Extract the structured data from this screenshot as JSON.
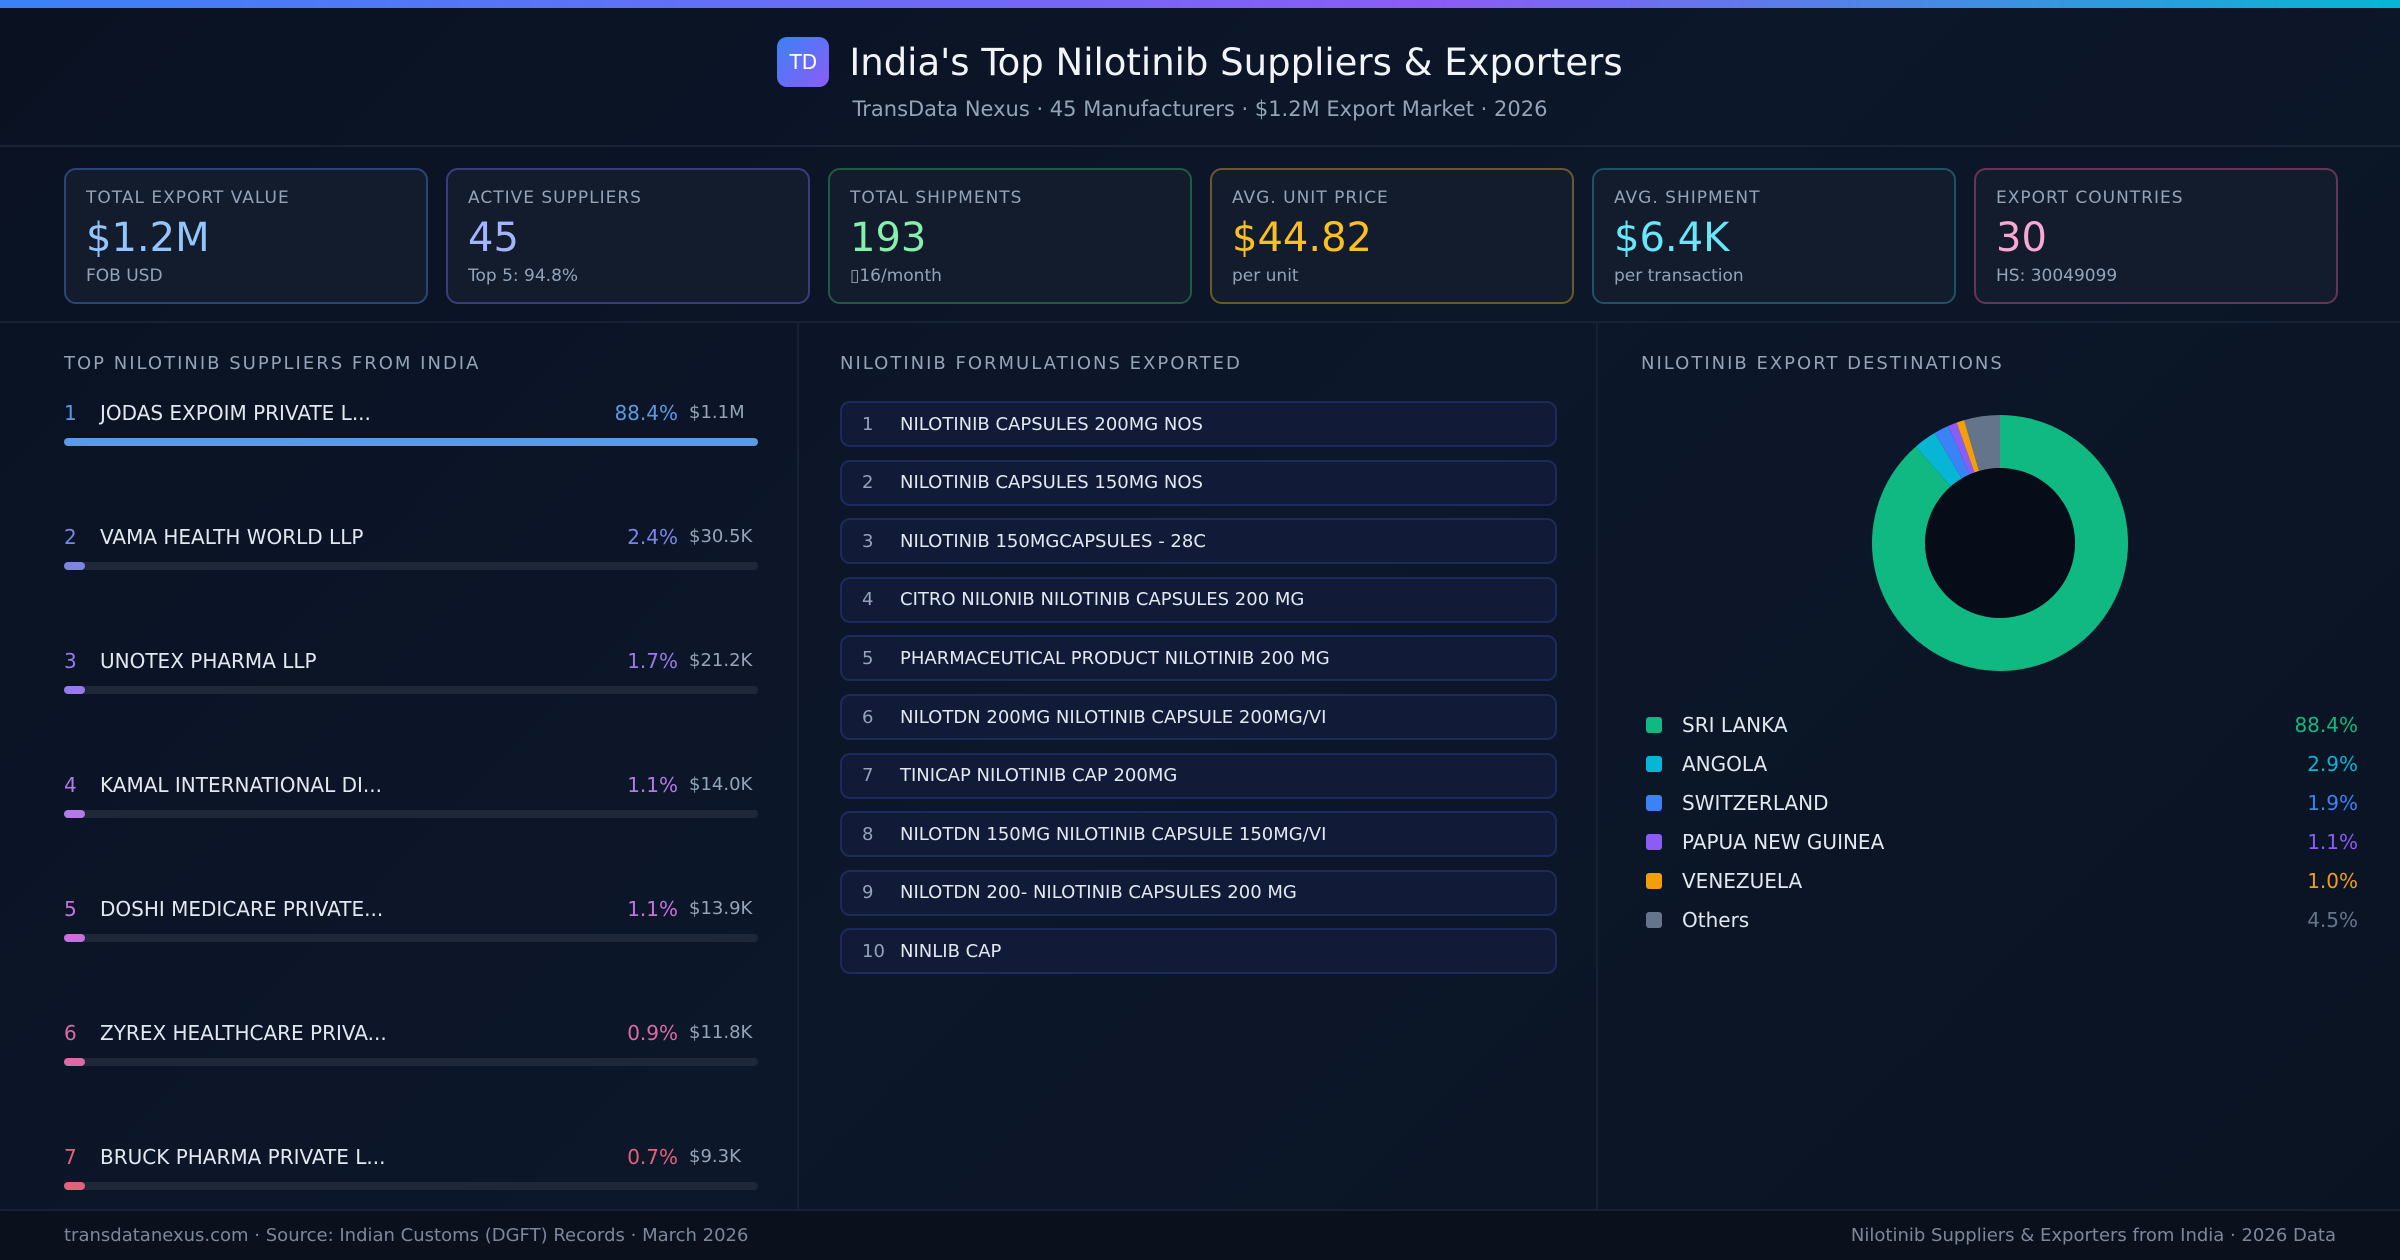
{
  "header": {
    "logo": "TD",
    "title": "India's Top Nilotinib Suppliers & Exporters",
    "subtitle": "TransData Nexus · 45 Manufacturers · $1.2M Export Market · 2026"
  },
  "kpis": [
    {
      "label": "TOTAL EXPORT VALUE",
      "value": "$1.2M",
      "sub": "FOB USD",
      "color": "#93c5fd",
      "border": "#2b4675"
    },
    {
      "label": "ACTIVE SUPPLIERS",
      "value": "45",
      "sub": "Top 5: 94.8%",
      "color": "#a5b4fc",
      "border": "#3a3d7c"
    },
    {
      "label": "TOTAL SHIPMENTS",
      "value": "193",
      "sub": "▯16/month",
      "color": "#86efac",
      "border": "#1f5a45"
    },
    {
      "label": "AVG. UNIT PRICE",
      "value": "$44.82",
      "sub": "per unit",
      "color": "#fbbf24",
      "border": "#6b5a28"
    },
    {
      "label": "AVG. SHIPMENT",
      "value": "$6.4K",
      "sub": "per transaction",
      "color": "#67e8f9",
      "border": "#1e5366"
    },
    {
      "label": "EXPORT COUNTRIES",
      "value": "30",
      "sub": "HS: 30049099",
      "color": "#f9a8d4",
      "border": "#663455"
    }
  ],
  "suppliers": {
    "title": "TOP NILOTINIB SUPPLIERS FROM INDIA",
    "items": [
      {
        "rank": "1",
        "name": "JODAS EXPOIM PRIVATE L...",
        "pct": "88.4%",
        "value": "$1.1M",
        "share": 88.4,
        "color": "#5b9be6"
      },
      {
        "rank": "2",
        "name": "VAMA HEALTH WORLD LLP",
        "pct": "2.4%",
        "value": "$30.5K",
        "share": 2.4,
        "color": "#7c85e6"
      },
      {
        "rank": "3",
        "name": "UNOTEX PHARMA LLP",
        "pct": "1.7%",
        "value": "$21.2K",
        "share": 1.7,
        "color": "#9a7ae8"
      },
      {
        "rank": "4",
        "name": "KAMAL INTERNATIONAL DI...",
        "pct": "1.1%",
        "value": "$14.0K",
        "share": 1.1,
        "color": "#b27ae6"
      },
      {
        "rank": "5",
        "name": "DOSHI MEDICARE PRIVATE...",
        "pct": "1.1%",
        "value": "$13.9K",
        "share": 1.1,
        "color": "#c970e0"
      },
      {
        "rank": "6",
        "name": "ZYREX HEALTHCARE PRIVA...",
        "pct": "0.9%",
        "value": "$11.8K",
        "share": 0.9,
        "color": "#dc6aa8"
      },
      {
        "rank": "7",
        "name": "BRUCK PHARMA PRIVATE L...",
        "pct": "0.7%",
        "value": "$9.3K",
        "share": 0.7,
        "color": "#e2627a"
      }
    ]
  },
  "formulations": {
    "title": "NILOTINIB FORMULATIONS EXPORTED",
    "items": [
      {
        "rank": "1",
        "name": "NILOTINIB CAPSULES 200MG NOS"
      },
      {
        "rank": "2",
        "name": "NILOTINIB CAPSULES 150MG NOS"
      },
      {
        "rank": "3",
        "name": "NILOTINIB 150MGCAPSULES - 28C"
      },
      {
        "rank": "4",
        "name": "CITRO NILONIB NILOTINIB CAPSULES 200 MG"
      },
      {
        "rank": "5",
        "name": "PHARMACEUTICAL PRODUCT NILOTINIB 200 MG"
      },
      {
        "rank": "6",
        "name": "NILOTDN 200MG NILOTINIB CAPSULE 200MG/VI"
      },
      {
        "rank": "7",
        "name": "TINICAP NILOTINIB CAP 200MG"
      },
      {
        "rank": "8",
        "name": "NILOTDN 150MG NILOTINIB CAPSULE 150MG/VI"
      },
      {
        "rank": "9",
        "name": "NILOTDN 200- NILOTINIB CAPSULES 200 MG"
      },
      {
        "rank": "10",
        "name": "NINLIB CAP"
      }
    ]
  },
  "destinations": {
    "title": "NILOTINIB EXPORT DESTINATIONS",
    "chart_data": {
      "type": "pie",
      "categories": [
        "SRI LANKA",
        "ANGOLA",
        "SWITZERLAND",
        "PAPUA NEW GUINEA",
        "VENEZUELA",
        "Others"
      ],
      "values": [
        88.4,
        2.9,
        1.9,
        1.1,
        1.0,
        4.5
      ],
      "labels": [
        "88.4%",
        "2.9%",
        "1.9%",
        "1.1%",
        "1.0%",
        "4.5%"
      ],
      "colors": [
        "#10b981",
        "#06b6d4",
        "#3b82f6",
        "#8b5cf6",
        "#f59e0b",
        "#64748b"
      ]
    }
  },
  "footer": {
    "left": "transdatanexus.com · Source: Indian Customs (DGFT) Records · March 2026",
    "right": "Nilotinib Suppliers & Exporters from India · 2026 Data"
  }
}
